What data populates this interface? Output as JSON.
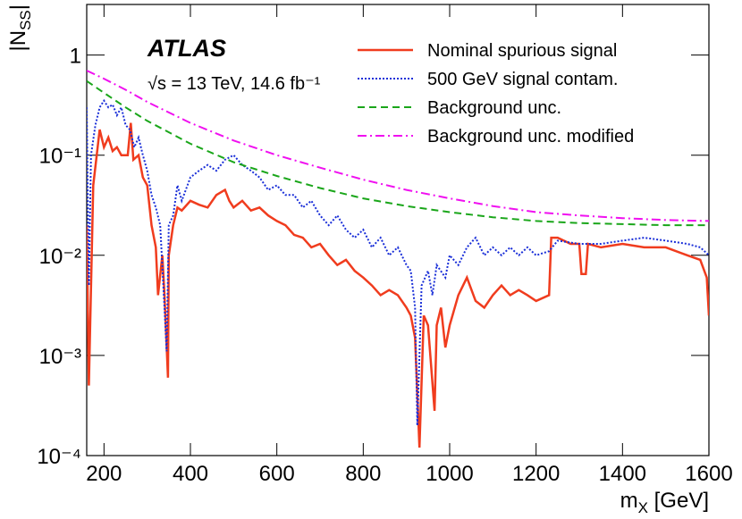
{
  "chart_data": {
    "type": "line",
    "annotations": [
      "ATLAS",
      "√s = 13 TeV, 14.6 fb⁻¹"
    ],
    "xlabel": [
      "m",
      "X",
      " [GeV]"
    ],
    "ylabel": [
      "|N",
      "SS",
      "|"
    ],
    "xlim": [
      160,
      1600
    ],
    "xticks": [
      200,
      400,
      600,
      800,
      1000,
      1200,
      1400,
      1600
    ],
    "ylim": [
      0.0001,
      3.2
    ],
    "ylog": true,
    "yticks": [
      {
        "value": 0.0001,
        "label": "10⁻⁴"
      },
      {
        "value": 0.001,
        "label": "10⁻³"
      },
      {
        "value": 0.01,
        "label": "10⁻²"
      },
      {
        "value": 0.1,
        "label": "10⁻¹"
      },
      1
    ],
    "legend": "upper right",
    "series": [
      {
        "name": "Nominal spurious signal",
        "color": "#f03c1e",
        "style": "solid",
        "x": [
          160,
          165,
          175,
          190,
          200,
          210,
          220,
          230,
          240,
          255,
          262,
          268,
          280,
          290,
          300,
          310,
          320,
          325,
          335,
          340,
          348,
          350,
          360,
          370,
          380,
          400,
          420,
          440,
          460,
          480,
          490,
          500,
          520,
          540,
          560,
          580,
          600,
          620,
          640,
          660,
          680,
          700,
          720,
          740,
          760,
          780,
          800,
          820,
          840,
          860,
          880,
          900,
          910,
          920,
          930,
          940,
          950,
          965,
          970,
          980,
          990,
          1000,
          1020,
          1040,
          1060,
          1080,
          1100,
          1120,
          1140,
          1160,
          1180,
          1200,
          1230,
          1235,
          1250,
          1280,
          1300,
          1305,
          1315,
          1320,
          1350,
          1400,
          1450,
          1500,
          1550,
          1580,
          1595,
          1600
        ],
        "values": [
          0.02,
          0.0005,
          0.05,
          0.18,
          0.12,
          0.15,
          0.11,
          0.12,
          0.1,
          0.1,
          0.21,
          0.09,
          0.1,
          0.06,
          0.05,
          0.02,
          0.012,
          0.004,
          0.01,
          0.004,
          0.0006,
          0.01,
          0.02,
          0.03,
          0.028,
          0.035,
          0.032,
          0.03,
          0.04,
          0.045,
          0.035,
          0.03,
          0.035,
          0.028,
          0.03,
          0.025,
          0.022,
          0.02,
          0.016,
          0.015,
          0.012,
          0.013,
          0.01,
          0.008,
          0.009,
          0.007,
          0.006,
          0.005,
          0.004,
          0.0045,
          0.004,
          0.003,
          0.0025,
          0.0015,
          0.00012,
          0.0025,
          0.002,
          0.00028,
          0.002,
          0.003,
          0.0012,
          0.002,
          0.004,
          0.006,
          0.0035,
          0.003,
          0.004,
          0.005,
          0.004,
          0.0045,
          0.004,
          0.0035,
          0.004,
          0.015,
          0.015,
          0.013,
          0.013,
          0.0065,
          0.0065,
          0.013,
          0.012,
          0.013,
          0.012,
          0.012,
          0.01,
          0.009,
          0.006,
          0.0025
        ]
      },
      {
        "name": "500 GeV signal contam.",
        "color": "#1a2fd8",
        "style": "dotted",
        "x": [
          160,
          165,
          170,
          180,
          190,
          200,
          210,
          220,
          230,
          240,
          250,
          260,
          270,
          280,
          290,
          300,
          310,
          320,
          330,
          340,
          345,
          350,
          360,
          370,
          380,
          400,
          420,
          440,
          460,
          480,
          500,
          520,
          540,
          560,
          580,
          600,
          620,
          640,
          660,
          680,
          700,
          720,
          740,
          760,
          780,
          800,
          820,
          840,
          860,
          880,
          900,
          910,
          920,
          925,
          935,
          950,
          960,
          970,
          990,
          1000,
          1020,
          1040,
          1060,
          1080,
          1100,
          1120,
          1140,
          1160,
          1180,
          1200,
          1230,
          1250,
          1300,
          1350,
          1400,
          1450,
          1500,
          1550,
          1580,
          1600
        ],
        "values": [
          0.3,
          0.005,
          0.1,
          0.2,
          0.3,
          0.35,
          0.3,
          0.32,
          0.25,
          0.3,
          0.2,
          0.18,
          0.12,
          0.15,
          0.1,
          0.07,
          0.04,
          0.03,
          0.02,
          0.003,
          0.0011,
          0.02,
          0.025,
          0.05,
          0.035,
          0.06,
          0.07,
          0.08,
          0.07,
          0.09,
          0.1,
          0.08,
          0.07,
          0.06,
          0.045,
          0.05,
          0.04,
          0.04,
          0.03,
          0.035,
          0.025,
          0.02,
          0.025,
          0.018,
          0.015,
          0.018,
          0.012,
          0.015,
          0.01,
          0.012,
          0.008,
          0.007,
          0.003,
          0.0002,
          0.005,
          0.007,
          0.004,
          0.008,
          0.006,
          0.01,
          0.008,
          0.012,
          0.015,
          0.01,
          0.012,
          0.01,
          0.012,
          0.01,
          0.012,
          0.01,
          0.011,
          0.014,
          0.013,
          0.013,
          0.014,
          0.015,
          0.014,
          0.013,
          0.012,
          0.01
        ]
      },
      {
        "name": "Background unc.",
        "color": "#1aa61a",
        "style": "dashed",
        "x": [
          160,
          200,
          250,
          300,
          400,
          500,
          600,
          700,
          800,
          900,
          1000,
          1100,
          1200,
          1300,
          1400,
          1500,
          1600
        ],
        "values": [
          0.55,
          0.42,
          0.3,
          0.22,
          0.13,
          0.085,
          0.062,
          0.047,
          0.037,
          0.031,
          0.027,
          0.024,
          0.022,
          0.021,
          0.0205,
          0.02,
          0.02
        ]
      },
      {
        "name": "Background unc. modified",
        "color": "#f010f0",
        "style": "dashdot",
        "x": [
          160,
          200,
          250,
          300,
          400,
          500,
          600,
          700,
          800,
          900,
          1000,
          1100,
          1200,
          1300,
          1400,
          1500,
          1600
        ],
        "values": [
          0.7,
          0.58,
          0.45,
          0.34,
          0.21,
          0.14,
          0.1,
          0.075,
          0.057,
          0.045,
          0.037,
          0.031,
          0.027,
          0.025,
          0.0235,
          0.0225,
          0.022
        ]
      }
    ]
  }
}
